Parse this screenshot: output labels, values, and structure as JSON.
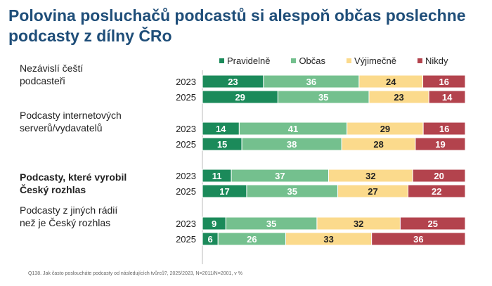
{
  "title": "Polovina posluchačů podcastů si alespoň občas poslechne podcasty z dílny ČRo",
  "footnote": "Q138. Jak často posloucháte podcasty od následujících tvůrců?, 2025/2023, N=2011/N=2001, v %",
  "chart_data": {
    "type": "bar",
    "orientation": "horizontal-stacked-100",
    "title": "Polovina posluchačů podcastů si alespoň občas poslechne podcasty z dílny ČRo",
    "legend_position": "top",
    "xlim": [
      0,
      100
    ],
    "series": [
      {
        "name": "Pravidelně",
        "color": "#1b8a5a"
      },
      {
        "name": "Občas",
        "color": "#74c08e"
      },
      {
        "name": "Výjimečně",
        "color": "#fbda8c"
      },
      {
        "name": "Nikdy",
        "color": "#b3434d"
      }
    ],
    "groups": [
      {
        "label": "Nezávislí čeští podcasteři",
        "bold": false,
        "rows": [
          {
            "year": "2023",
            "values": [
              23,
              36,
              24,
              16
            ]
          },
          {
            "year": "2025",
            "values": [
              29,
              35,
              23,
              14
            ]
          }
        ]
      },
      {
        "label": "Podcasty internetových serverů/vydavatelů",
        "bold": false,
        "rows": [
          {
            "year": "2023",
            "values": [
              14,
              41,
              29,
              16
            ]
          },
          {
            "year": "2025",
            "values": [
              15,
              38,
              28,
              19
            ]
          }
        ]
      },
      {
        "label": "Podcasty, které vyrobil Český rozhlas",
        "bold": true,
        "rows": [
          {
            "year": "2023",
            "values": [
              11,
              37,
              32,
              20
            ]
          },
          {
            "year": "2025",
            "values": [
              17,
              35,
              27,
              22
            ]
          }
        ]
      },
      {
        "label": "Podcasty z jiných rádií než je Český rozhlas",
        "bold": false,
        "rows": [
          {
            "year": "2023",
            "values": [
              9,
              35,
              32,
              25
            ]
          },
          {
            "year": "2025",
            "values": [
              6,
              26,
              33,
              36
            ]
          }
        ]
      }
    ]
  }
}
